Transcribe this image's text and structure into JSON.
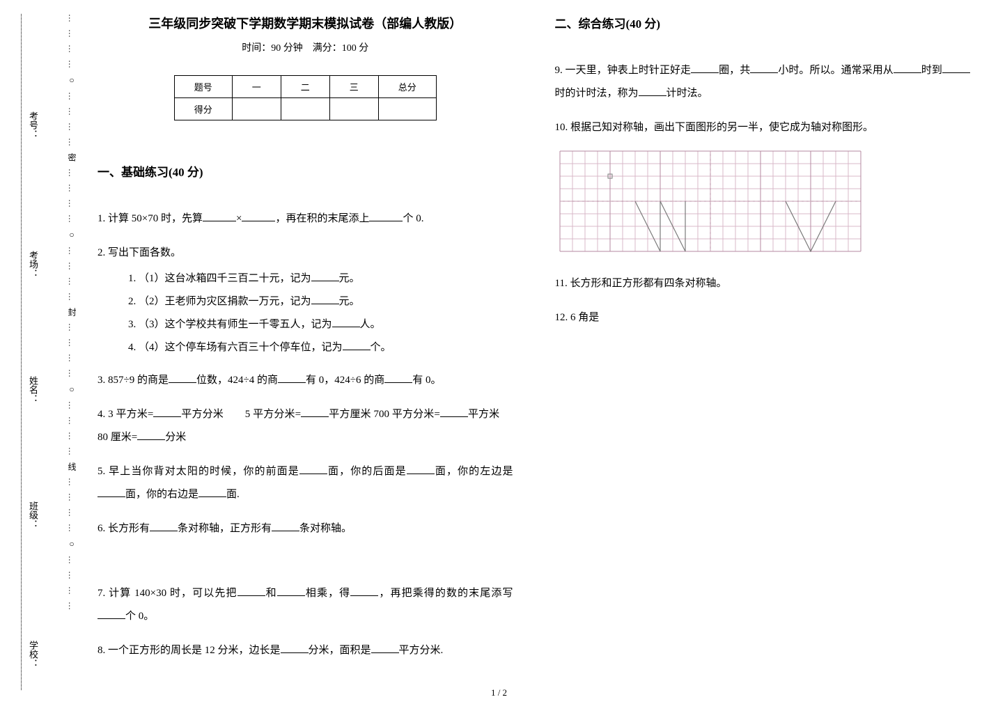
{
  "title": "三年级同步突破下学期数学期末模拟试卷（部编人教版）",
  "subtitle": "时间：90 分钟　满分：100 分",
  "score_table": {
    "headers": [
      "题号",
      "一",
      "二",
      "三",
      "总分"
    ],
    "row_label": "得分"
  },
  "binding": {
    "dotted_inner": "…………○…………密…………○…………封…………○…………线…………○…………",
    "labels": [
      "学校：",
      "班级：",
      "姓名：",
      "考场：",
      "考号："
    ]
  },
  "section1": {
    "header": "一、基础练习(40 分)",
    "q1": {
      "pre": "1.  计算 50×70 时，先算",
      "mid": "×",
      "post": "，再在积的末尾添上",
      "tail": "个 0."
    },
    "q2": {
      "label": "2.  写出下面各数。",
      "items": [
        {
          "n": "1.  ",
          "a": "（1）这台冰箱四千三百二十元，记为",
          "b": "元。"
        },
        {
          "n": "2.  ",
          "a": "（2）王老师为灾区捐款一万元，记为",
          "b": "元。"
        },
        {
          "n": "3.  ",
          "a": "（3）这个学校共有师生一千零五人，记为",
          "b": "人。"
        },
        {
          "n": "4.  ",
          "a": "（4）这个停车场有六百三十个停车位，记为",
          "b": "个。"
        }
      ]
    },
    "q3": {
      "a": "3.  857÷9 的商是",
      "b": "位数，424÷4 的商",
      "c": "有 0，424÷6 的商",
      "d": "有 0。"
    },
    "q4": {
      "a": "4.  3 平方米=",
      "b": "平方分米",
      "c": "5 平方分米=",
      "d": "平方厘米 700 平方分米=",
      "e": "平方米",
      "f": "80 厘米=",
      "g": "分米"
    },
    "q5": {
      "a": "5.  早上当你背对太阳的时候，你的前面是",
      "b": "面，你的后面是",
      "c": "面，你的左边是",
      "d": "面，你的右边是",
      "e": "面."
    },
    "q6": {
      "a": "6.  长方形有",
      "b": "条对称轴，正方形有",
      "c": "条对称轴。"
    },
    "q7": {
      "a": "7.  计算 140×30 时，可以先把",
      "b": "和",
      "c": "相乘，得",
      "d": "，再把乘得的数的末尾添写",
      "e": "个 0。"
    },
    "q8": {
      "a": "8.  一个正方形的周长是 12 分米，边长是",
      "b": "分米，面积是",
      "c": "平方分米."
    }
  },
  "section2": {
    "header": "二、综合练习(40 分)",
    "q9": {
      "a": "9.  一天里，钟表上时针正好走",
      "b": "圈，共",
      "c": "小时。所以。通常采用从",
      "d": "时到",
      "e": "时的计时法，称为",
      "f": "计时法。"
    },
    "q10": "10.  根据己知对称轴，画出下面图形的另一半，使它成为轴对称图形。",
    "q11": "11.  长方形和正方形都有四条对称轴。",
    "q12": "12.  6 角是"
  },
  "page_num": "1 / 2",
  "grid": {
    "cell": 18,
    "cols": 24,
    "rows": 8,
    "color_major": "#b58aa0",
    "color_minor": "#d9b9c8",
    "color_dash": "#c79fb3",
    "axis_col": 12,
    "shape_stroke": "#7a7a7a"
  }
}
